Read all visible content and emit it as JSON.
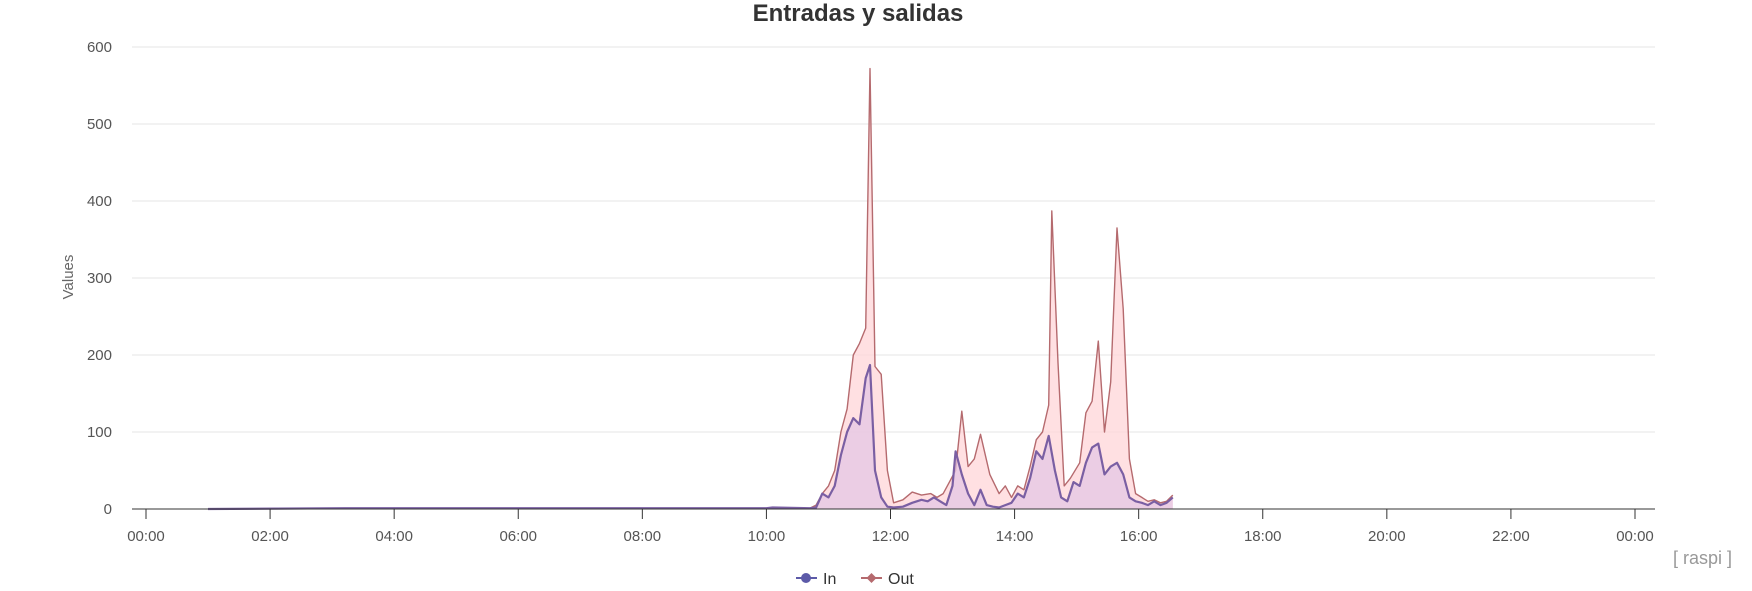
{
  "chart_data": {
    "type": "area",
    "title": "Entradas y salidas",
    "ylabel": "Values",
    "xlabel": "",
    "ylim": [
      0,
      600
    ],
    "yticks": [
      0,
      100,
      200,
      300,
      400,
      500,
      600
    ],
    "xlim": [
      0,
      24
    ],
    "xticks": [
      {
        "value": 0,
        "label": "00:00"
      },
      {
        "value": 2,
        "label": "02:00"
      },
      {
        "value": 4,
        "label": "04:00"
      },
      {
        "value": 6,
        "label": "06:00"
      },
      {
        "value": 8,
        "label": "08:00"
      },
      {
        "value": 10,
        "label": "10:00"
      },
      {
        "value": 12,
        "label": "12:00"
      },
      {
        "value": 14,
        "label": "14:00"
      },
      {
        "value": 16,
        "label": "16:00"
      },
      {
        "value": 18,
        "label": "18:00"
      },
      {
        "value": 20,
        "label": "20:00"
      },
      {
        "value": 22,
        "label": "22:00"
      },
      {
        "value": 24,
        "label": "00:00"
      }
    ],
    "grid": true,
    "legend": "bottom-center",
    "credit": "[ raspi ]",
    "series": [
      {
        "name": "Out",
        "color": "#b56a6e",
        "fill": "#ffd6d8",
        "points": [
          [
            1.0,
            0
          ],
          [
            3.2,
            1
          ],
          [
            8.3,
            1
          ],
          [
            10.0,
            1
          ],
          [
            10.7,
            1
          ],
          [
            10.8,
            5
          ],
          [
            10.9,
            20
          ],
          [
            11.0,
            30
          ],
          [
            11.1,
            50
          ],
          [
            11.2,
            100
          ],
          [
            11.3,
            130
          ],
          [
            11.4,
            200
          ],
          [
            11.5,
            215
          ],
          [
            11.6,
            235
          ],
          [
            11.67,
            572
          ],
          [
            11.75,
            185
          ],
          [
            11.85,
            175
          ],
          [
            11.95,
            50
          ],
          [
            12.05,
            8
          ],
          [
            12.2,
            12
          ],
          [
            12.35,
            22
          ],
          [
            12.5,
            18
          ],
          [
            12.65,
            20
          ],
          [
            12.75,
            15
          ],
          [
            12.85,
            20
          ],
          [
            12.95,
            35
          ],
          [
            13.05,
            50
          ],
          [
            13.15,
            127
          ],
          [
            13.25,
            55
          ],
          [
            13.35,
            65
          ],
          [
            13.45,
            97
          ],
          [
            13.6,
            45
          ],
          [
            13.75,
            20
          ],
          [
            13.85,
            30
          ],
          [
            13.95,
            15
          ],
          [
            14.05,
            30
          ],
          [
            14.15,
            25
          ],
          [
            14.25,
            55
          ],
          [
            14.35,
            90
          ],
          [
            14.45,
            100
          ],
          [
            14.55,
            135
          ],
          [
            14.6,
            387
          ],
          [
            14.7,
            190
          ],
          [
            14.8,
            30
          ],
          [
            14.9,
            40
          ],
          [
            15.05,
            60
          ],
          [
            15.15,
            125
          ],
          [
            15.25,
            140
          ],
          [
            15.35,
            218
          ],
          [
            15.45,
            100
          ],
          [
            15.55,
            165
          ],
          [
            15.65,
            365
          ],
          [
            15.75,
            260
          ],
          [
            15.85,
            65
          ],
          [
            15.95,
            20
          ],
          [
            16.05,
            15
          ],
          [
            16.15,
            10
          ],
          [
            16.25,
            12
          ],
          [
            16.35,
            8
          ],
          [
            16.45,
            10
          ],
          [
            16.55,
            18
          ]
        ]
      },
      {
        "name": "In",
        "color": "#7a5fa3",
        "fill": "#e4c7e4",
        "points": [
          [
            1.0,
            0
          ],
          [
            3.2,
            1
          ],
          [
            8.3,
            1
          ],
          [
            10.0,
            1
          ],
          [
            10.1,
            2
          ],
          [
            10.7,
            1
          ],
          [
            10.8,
            2
          ],
          [
            10.9,
            20
          ],
          [
            11.0,
            15
          ],
          [
            11.1,
            30
          ],
          [
            11.2,
            70
          ],
          [
            11.3,
            100
          ],
          [
            11.4,
            118
          ],
          [
            11.5,
            110
          ],
          [
            11.6,
            170
          ],
          [
            11.67,
            187
          ],
          [
            11.75,
            50
          ],
          [
            11.85,
            15
          ],
          [
            11.95,
            3
          ],
          [
            12.05,
            2
          ],
          [
            12.2,
            3
          ],
          [
            12.35,
            8
          ],
          [
            12.5,
            12
          ],
          [
            12.6,
            10
          ],
          [
            12.7,
            15
          ],
          [
            12.8,
            10
          ],
          [
            12.9,
            5
          ],
          [
            13.0,
            30
          ],
          [
            13.05,
            75
          ],
          [
            13.15,
            45
          ],
          [
            13.25,
            20
          ],
          [
            13.35,
            5
          ],
          [
            13.45,
            25
          ],
          [
            13.55,
            5
          ],
          [
            13.65,
            3
          ],
          [
            13.75,
            2
          ],
          [
            13.85,
            5
          ],
          [
            13.95,
            8
          ],
          [
            14.05,
            20
          ],
          [
            14.15,
            15
          ],
          [
            14.25,
            40
          ],
          [
            14.35,
            75
          ],
          [
            14.45,
            65
          ],
          [
            14.55,
            95
          ],
          [
            14.65,
            50
          ],
          [
            14.75,
            15
          ],
          [
            14.85,
            10
          ],
          [
            14.95,
            35
          ],
          [
            15.05,
            30
          ],
          [
            15.15,
            60
          ],
          [
            15.25,
            80
          ],
          [
            15.35,
            85
          ],
          [
            15.45,
            45
          ],
          [
            15.55,
            55
          ],
          [
            15.65,
            60
          ],
          [
            15.75,
            45
          ],
          [
            15.85,
            15
          ],
          [
            15.95,
            10
          ],
          [
            16.05,
            8
          ],
          [
            16.15,
            5
          ],
          [
            16.25,
            10
          ],
          [
            16.35,
            5
          ],
          [
            16.45,
            8
          ],
          [
            16.55,
            15
          ]
        ]
      }
    ]
  }
}
